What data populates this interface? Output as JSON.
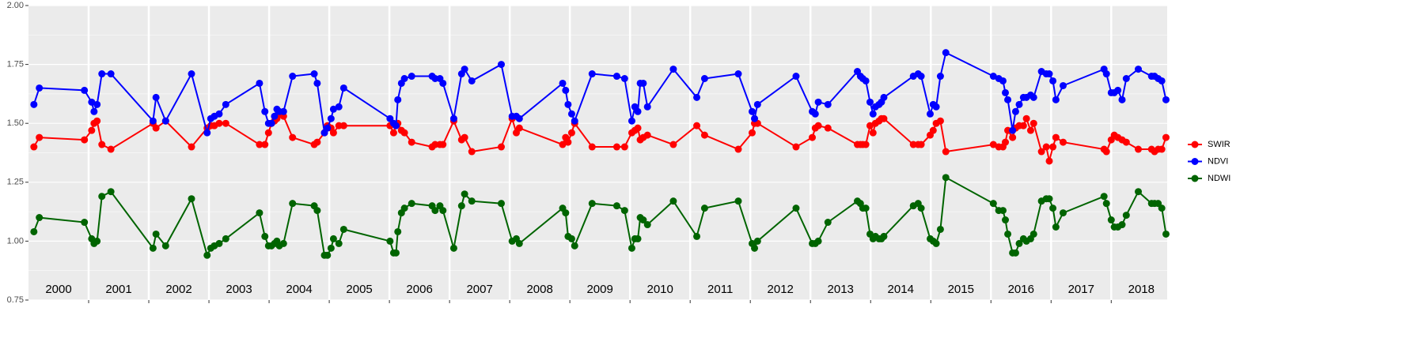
{
  "chart_data": {
    "type": "line",
    "x": [
      2000.09,
      2000.18,
      2000.93,
      2001.05,
      2001.09,
      2001.14,
      2001.22,
      2001.37,
      2002.07,
      2002.12,
      2002.28,
      2002.71,
      2002.97,
      2003.03,
      2003.09,
      2003.17,
      2003.28,
      2003.84,
      2003.93,
      2003.99,
      2004.04,
      2004.09,
      2004.13,
      2004.17,
      2004.24,
      2004.39,
      2004.75,
      2004.8,
      2004.92,
      2004.97,
      2005.03,
      2005.07,
      2005.16,
      2005.24,
      2006.01,
      2006.07,
      2006.11,
      2006.14,
      2006.2,
      2006.25,
      2006.37,
      2006.71,
      2006.76,
      2006.84,
      2006.89,
      2007.07,
      2007.2,
      2007.25,
      2007.37,
      2007.86,
      2008.04,
      2008.11,
      2008.16,
      2008.88,
      2008.93,
      2008.97,
      2009.03,
      2009.08,
      2009.37,
      2009.78,
      2009.91,
      2010.03,
      2010.08,
      2010.13,
      2010.17,
      2010.22,
      2010.29,
      2010.72,
      2011.11,
      2011.24,
      2011.8,
      2012.03,
      2012.07,
      2012.12,
      2012.76,
      2013.03,
      2013.08,
      2013.13,
      2013.29,
      2013.78,
      2013.83,
      2013.87,
      2013.92,
      2013.99,
      2014.04,
      2014.08,
      2014.14,
      2014.18,
      2014.22,
      2014.71,
      2014.79,
      2014.84,
      2014.99,
      2015.04,
      2015.09,
      2015.16,
      2015.25,
      2016.04,
      2016.13,
      2016.2,
      2016.24,
      2016.28,
      2016.36,
      2016.41,
      2016.47,
      2016.54,
      2016.59,
      2016.66,
      2016.71,
      2016.84,
      2016.92,
      2016.97,
      2017.03,
      2017.08,
      2017.2,
      2017.88,
      2017.92,
      2018.0,
      2018.05,
      2018.11,
      2018.18,
      2018.25,
      2018.45,
      2018.67,
      2018.72,
      2018.78,
      2018.84,
      2018.91
    ],
    "series": [
      {
        "name": "SWIR",
        "color": "#ff0000",
        "values": [
          1.4,
          1.44,
          1.43,
          1.47,
          1.5,
          1.51,
          1.41,
          1.39,
          1.5,
          1.48,
          1.51,
          1.4,
          1.48,
          1.49,
          1.49,
          1.5,
          1.5,
          1.41,
          1.41,
          1.46,
          1.5,
          1.51,
          1.52,
          1.54,
          1.53,
          1.44,
          1.41,
          1.42,
          1.46,
          1.49,
          1.48,
          1.46,
          1.49,
          1.49,
          1.49,
          1.46,
          1.49,
          1.5,
          1.47,
          1.46,
          1.42,
          1.4,
          1.41,
          1.41,
          1.41,
          1.51,
          1.43,
          1.44,
          1.38,
          1.4,
          1.52,
          1.46,
          1.48,
          1.41,
          1.44,
          1.42,
          1.46,
          1.5,
          1.4,
          1.4,
          1.4,
          1.46,
          1.47,
          1.48,
          1.43,
          1.44,
          1.45,
          1.41,
          1.49,
          1.45,
          1.39,
          1.46,
          1.5,
          1.5,
          1.4,
          1.44,
          1.48,
          1.49,
          1.48,
          1.41,
          1.41,
          1.41,
          1.41,
          1.49,
          1.46,
          1.5,
          1.51,
          1.52,
          1.52,
          1.41,
          1.41,
          1.41,
          1.45,
          1.47,
          1.5,
          1.51,
          1.38,
          1.41,
          1.4,
          1.4,
          1.42,
          1.47,
          1.44,
          1.48,
          1.49,
          1.49,
          1.52,
          1.47,
          1.5,
          1.38,
          1.4,
          1.34,
          1.4,
          1.44,
          1.42,
          1.39,
          1.38,
          1.43,
          1.45,
          1.44,
          1.43,
          1.42,
          1.39,
          1.39,
          1.38,
          1.39,
          1.39,
          1.44
        ]
      },
      {
        "name": "NDVI",
        "color": "#0000ff",
        "values": [
          1.58,
          1.65,
          1.64,
          1.59,
          1.55,
          1.58,
          1.71,
          1.71,
          1.51,
          1.61,
          1.51,
          1.71,
          1.46,
          1.52,
          1.53,
          1.54,
          1.58,
          1.67,
          1.55,
          1.5,
          1.5,
          1.53,
          1.56,
          1.55,
          1.55,
          1.7,
          1.71,
          1.67,
          1.46,
          1.48,
          1.52,
          1.56,
          1.57,
          1.65,
          1.52,
          1.5,
          1.49,
          1.6,
          1.67,
          1.69,
          1.7,
          1.7,
          1.69,
          1.69,
          1.67,
          1.52,
          1.71,
          1.73,
          1.68,
          1.75,
          1.53,
          1.53,
          1.52,
          1.67,
          1.64,
          1.58,
          1.54,
          1.51,
          1.71,
          1.7,
          1.69,
          1.51,
          1.57,
          1.55,
          1.67,
          1.67,
          1.57,
          1.73,
          1.61,
          1.69,
          1.71,
          1.55,
          1.52,
          1.58,
          1.7,
          1.55,
          1.54,
          1.59,
          1.58,
          1.72,
          1.7,
          1.69,
          1.68,
          1.59,
          1.54,
          1.57,
          1.58,
          1.59,
          1.61,
          1.7,
          1.71,
          1.7,
          1.54,
          1.58,
          1.57,
          1.7,
          1.8,
          1.7,
          1.69,
          1.68,
          1.63,
          1.6,
          1.47,
          1.55,
          1.58,
          1.61,
          1.61,
          1.62,
          1.61,
          1.72,
          1.71,
          1.71,
          1.68,
          1.6,
          1.66,
          1.73,
          1.71,
          1.63,
          1.63,
          1.64,
          1.6,
          1.69,
          1.73,
          1.7,
          1.7,
          1.69,
          1.68,
          1.6
        ]
      },
      {
        "name": "NDWI",
        "color": "#006400",
        "values": [
          1.04,
          1.1,
          1.08,
          1.01,
          0.99,
          1.0,
          1.19,
          1.21,
          0.97,
          1.03,
          0.98,
          1.18,
          0.94,
          0.97,
          0.98,
          0.99,
          1.01,
          1.12,
          1.02,
          0.98,
          0.98,
          0.99,
          1.0,
          0.98,
          0.99,
          1.16,
          1.15,
          1.13,
          0.94,
          0.94,
          0.97,
          1.01,
          0.99,
          1.05,
          1.0,
          0.95,
          0.95,
          1.04,
          1.12,
          1.14,
          1.16,
          1.15,
          1.13,
          1.15,
          1.13,
          0.97,
          1.15,
          1.2,
          1.17,
          1.16,
          1.0,
          1.01,
          0.99,
          1.14,
          1.12,
          1.02,
          1.01,
          0.98,
          1.16,
          1.15,
          1.13,
          0.97,
          1.01,
          1.01,
          1.1,
          1.09,
          1.07,
          1.17,
          1.02,
          1.14,
          1.17,
          0.99,
          0.97,
          1.0,
          1.14,
          0.99,
          0.99,
          1.0,
          1.08,
          1.17,
          1.16,
          1.14,
          1.14,
          1.03,
          1.01,
          1.02,
          1.01,
          1.01,
          1.02,
          1.15,
          1.16,
          1.14,
          1.01,
          1.0,
          0.99,
          1.05,
          1.27,
          1.16,
          1.13,
          1.13,
          1.09,
          1.03,
          0.95,
          0.95,
          0.99,
          1.01,
          1.0,
          1.01,
          1.03,
          1.17,
          1.18,
          1.18,
          1.14,
          1.06,
          1.12,
          1.19,
          1.16,
          1.09,
          1.06,
          1.06,
          1.07,
          1.11,
          1.21,
          1.16,
          1.16,
          1.16,
          1.14,
          1.03
        ]
      }
    ],
    "xlim": [
      2000,
      2018.93
    ],
    "xticks": [
      {
        "value": 2000.5,
        "label": "2000"
      },
      {
        "value": 2001.5,
        "label": "2001"
      },
      {
        "value": 2002.5,
        "label": "2002"
      },
      {
        "value": 2003.5,
        "label": "2003"
      },
      {
        "value": 2004.5,
        "label": "2004"
      },
      {
        "value": 2005.5,
        "label": "2005"
      },
      {
        "value": 2006.5,
        "label": "2006"
      },
      {
        "value": 2007.5,
        "label": "2007"
      },
      {
        "value": 2008.5,
        "label": "2008"
      },
      {
        "value": 2009.5,
        "label": "2009"
      },
      {
        "value": 2010.5,
        "label": "2010"
      },
      {
        "value": 2011.5,
        "label": "2011"
      },
      {
        "value": 2012.5,
        "label": "2012"
      },
      {
        "value": 2013.5,
        "label": "2013"
      },
      {
        "value": 2014.5,
        "label": "2014"
      },
      {
        "value": 2015.5,
        "label": "2015"
      },
      {
        "value": 2016.5,
        "label": "2016"
      },
      {
        "value": 2017.5,
        "label": "2017"
      },
      {
        "value": 2018.5,
        "label": "2018"
      }
    ],
    "xgrid": [
      2001,
      2002,
      2003,
      2004,
      2005,
      2006,
      2007,
      2008,
      2009,
      2010,
      2011,
      2012,
      2013,
      2014,
      2015,
      2016,
      2017,
      2018
    ],
    "ylim": [
      0.75,
      2.0
    ],
    "yticks": [
      0.75,
      {
        "value": 1,
        "label": "1.00"
      },
      1.25,
      {
        "value": 1.5,
        "label": "1.50"
      },
      1.75,
      {
        "value": 2,
        "label": "2.00"
      }
    ],
    "grid": true,
    "legend": "right"
  }
}
